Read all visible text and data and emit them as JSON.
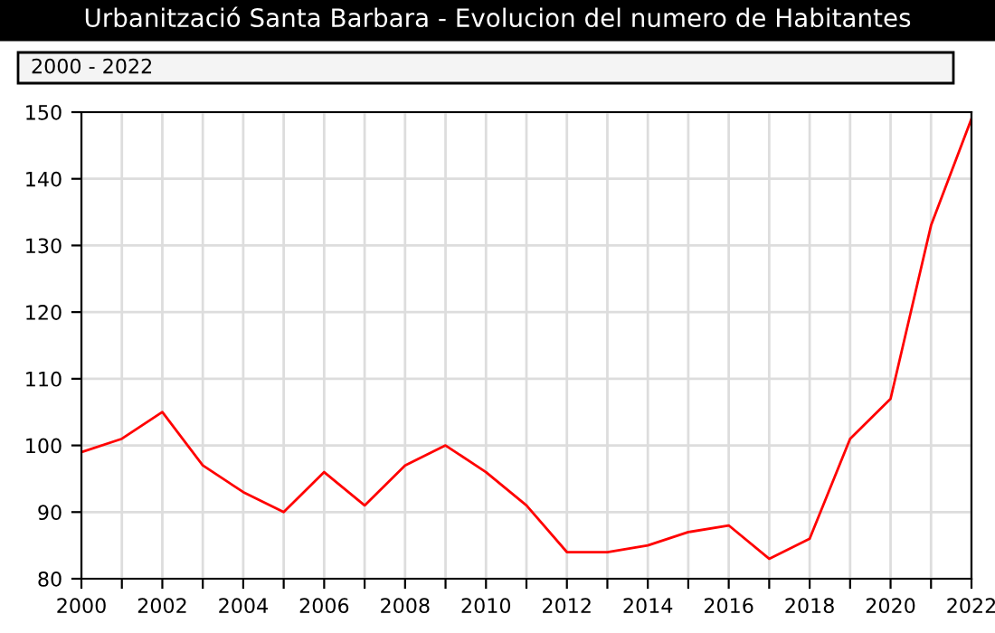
{
  "chart_data": {
    "type": "line",
    "title": "Urbanització Santa Barbara - Evolucion del numero de Habitantes",
    "subtitle": "2000 - 2022",
    "x": [
      2000,
      2001,
      2002,
      2003,
      2004,
      2005,
      2006,
      2007,
      2008,
      2009,
      2010,
      2011,
      2012,
      2013,
      2014,
      2015,
      2016,
      2017,
      2018,
      2019,
      2020,
      2021,
      2022
    ],
    "series": [
      {
        "color": "#ff0000",
        "values": [
          99,
          101,
          105,
          97,
          93,
          90,
          96,
          91,
          97,
          100,
          96,
          91,
          84,
          84,
          85,
          87,
          88,
          83,
          86,
          101,
          107,
          133,
          149
        ]
      }
    ],
    "xlim": [
      2000,
      2022
    ],
    "xticks": [
      2000,
      {
        "value": 2001,
        "label": null
      },
      2002,
      {
        "value": 2003,
        "label": null
      },
      2004,
      {
        "value": 2005,
        "label": null
      },
      2006,
      {
        "value": 2007,
        "label": null
      },
      2008,
      {
        "value": 2009,
        "label": null
      },
      2010,
      {
        "value": 2011,
        "label": null
      },
      2012,
      {
        "value": 2013,
        "label": null
      },
      2014,
      {
        "value": 2015,
        "label": null
      },
      2016,
      {
        "value": 2017,
        "label": null
      },
      2018,
      {
        "value": 2019,
        "label": null
      },
      2020,
      {
        "value": 2021,
        "label": null
      },
      2022
    ],
    "ylim": [
      80,
      150
    ],
    "yticks": [
      80,
      90,
      100,
      110,
      120,
      130,
      140,
      150
    ],
    "grid": true,
    "legend": false,
    "marker": "none",
    "line_style": "solid"
  }
}
